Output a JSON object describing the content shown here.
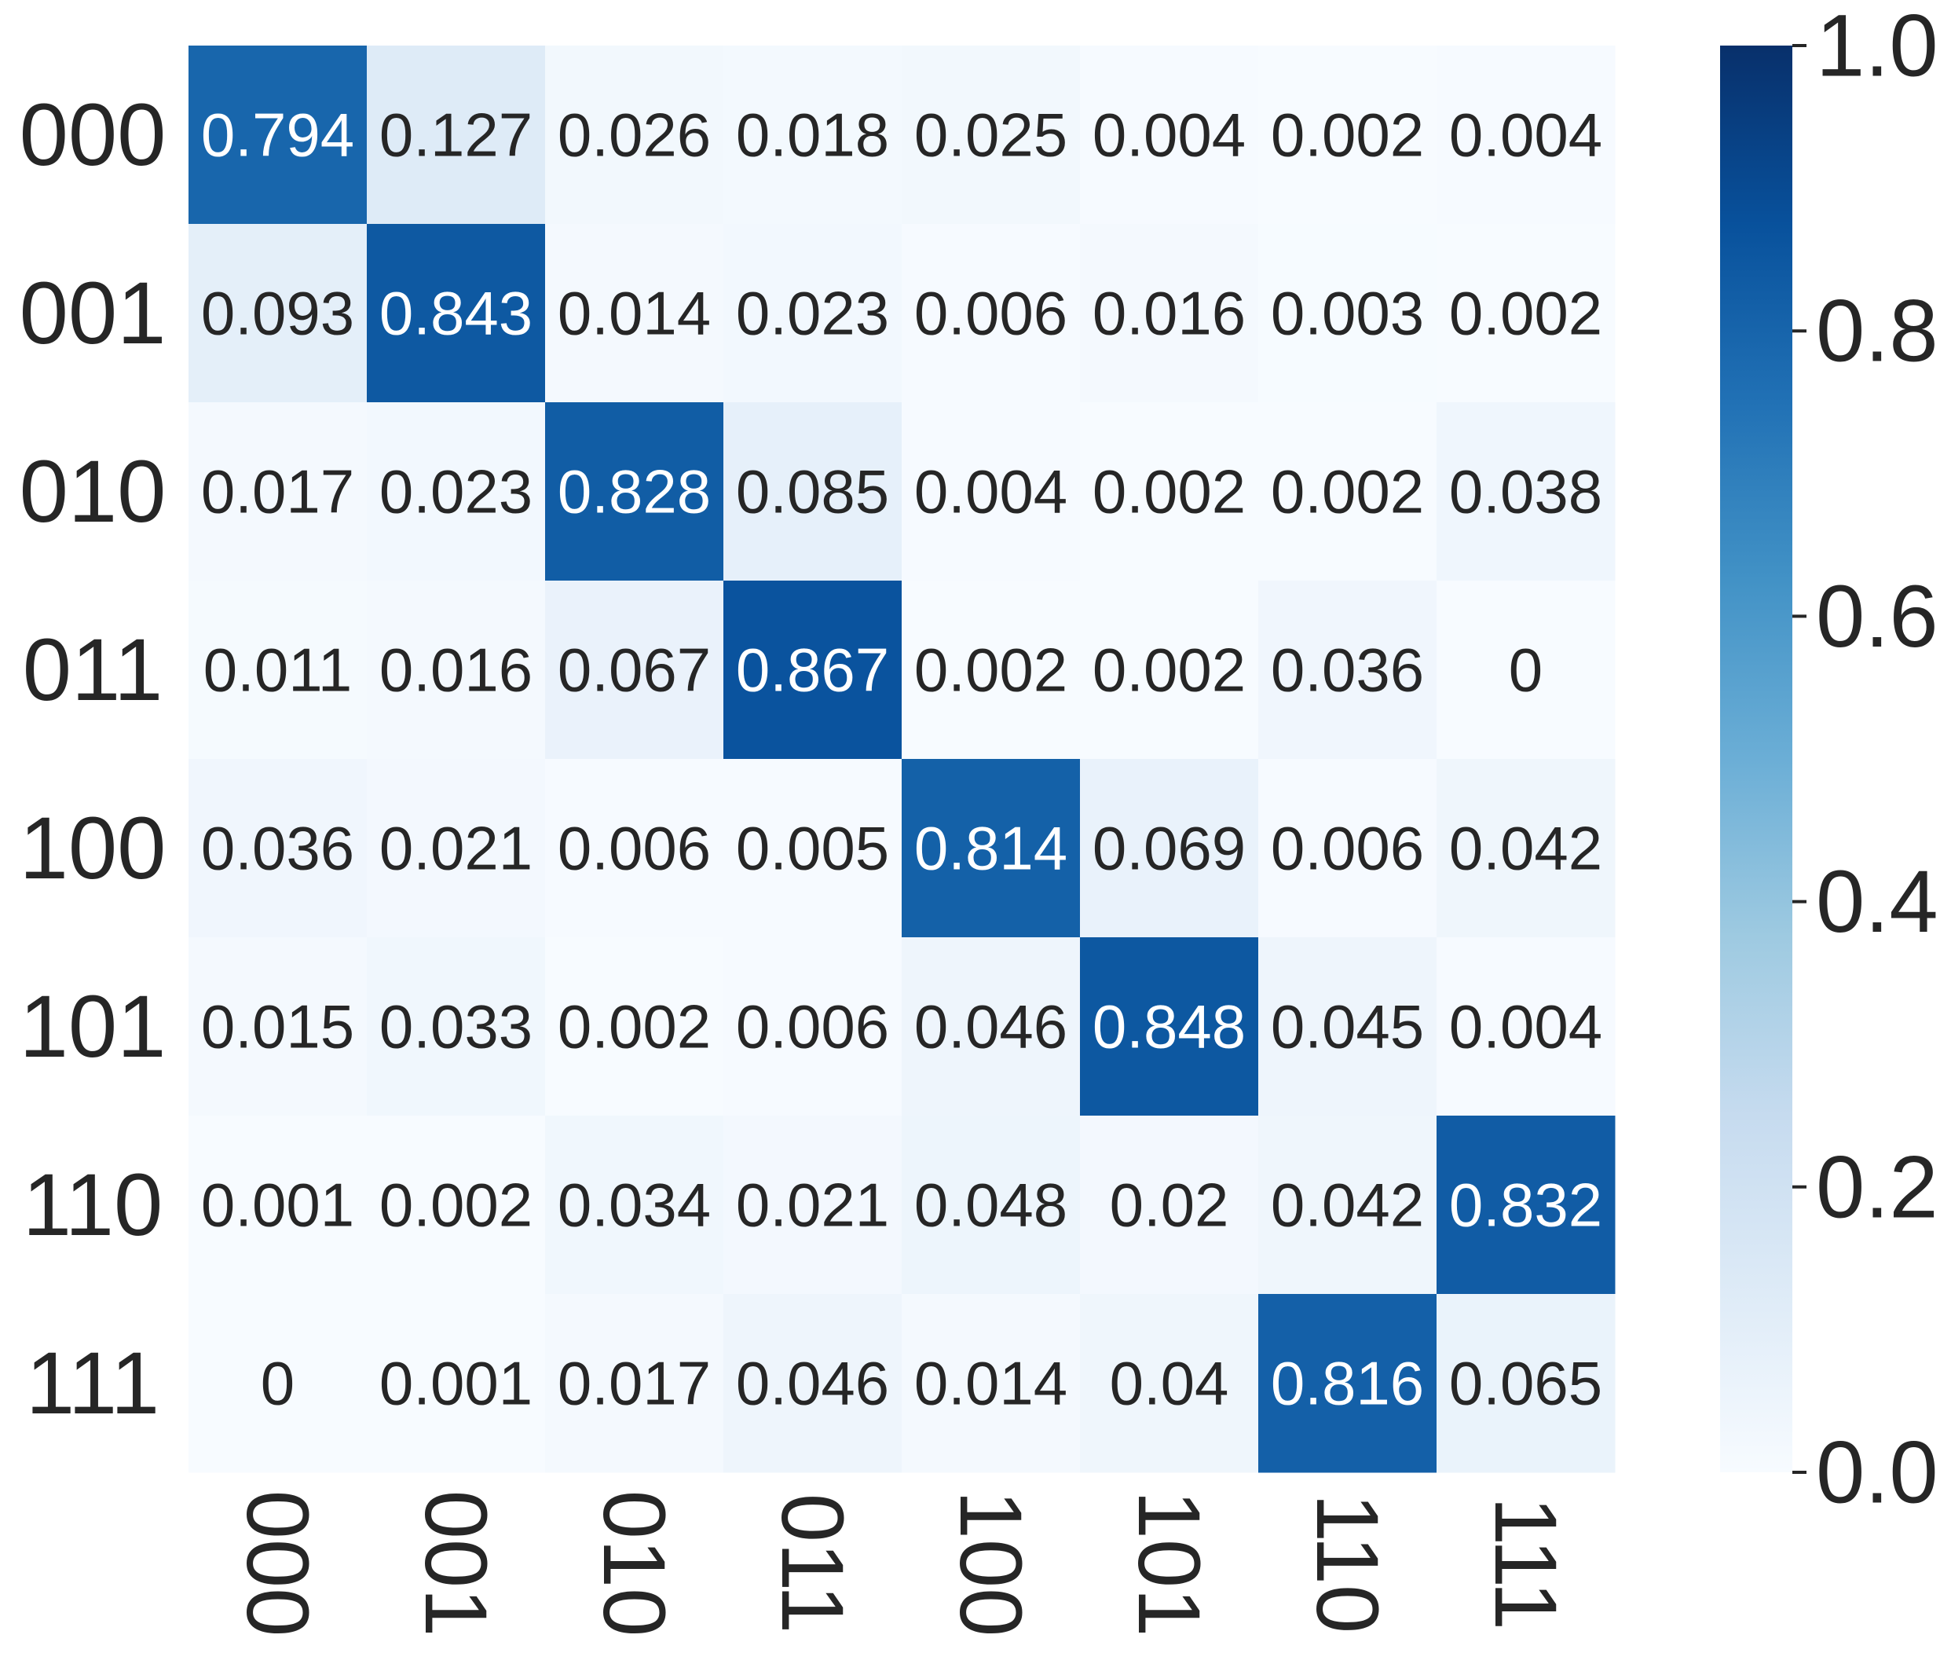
{
  "chart_data": {
    "type": "heatmap",
    "title": "",
    "xlabel": "",
    "ylabel": "",
    "colormap": "Blues",
    "color_range": [
      0.0,
      1.0
    ],
    "x_categories": [
      "000",
      "001",
      "010",
      "011",
      "100",
      "101",
      "110",
      "111"
    ],
    "y_categories": [
      "000",
      "001",
      "010",
      "011",
      "100",
      "101",
      "110",
      "111"
    ],
    "values": [
      [
        0.794,
        0.127,
        0.026,
        0.018,
        0.025,
        0.004,
        0.002,
        0.004
      ],
      [
        0.093,
        0.843,
        0.014,
        0.023,
        0.006,
        0.016,
        0.003,
        0.002
      ],
      [
        0.017,
        0.023,
        0.828,
        0.085,
        0.004,
        0.002,
        0.002,
        0.038
      ],
      [
        0.011,
        0.016,
        0.067,
        0.867,
        0.002,
        0.002,
        0.036,
        0
      ],
      [
        0.036,
        0.021,
        0.006,
        0.005,
        0.814,
        0.069,
        0.006,
        0.042
      ],
      [
        0.015,
        0.033,
        0.002,
        0.006,
        0.046,
        0.848,
        0.045,
        0.004
      ],
      [
        0.001,
        0.002,
        0.034,
        0.021,
        0.048,
        0.02,
        0.042,
        0.832
      ],
      [
        0,
        0.001,
        0.017,
        0.046,
        0.014,
        0.04,
        0.816,
        0.065
      ]
    ],
    "colorbar": {
      "ticks": [
        "0.0",
        "0.2",
        "0.4",
        "0.6",
        "0.8",
        "1.0"
      ],
      "tick_values": [
        0.0,
        0.2,
        0.4,
        0.6,
        0.8,
        1.0
      ]
    },
    "annotation_color_dark": "#262626",
    "annotation_color_light": "#ffffff"
  }
}
